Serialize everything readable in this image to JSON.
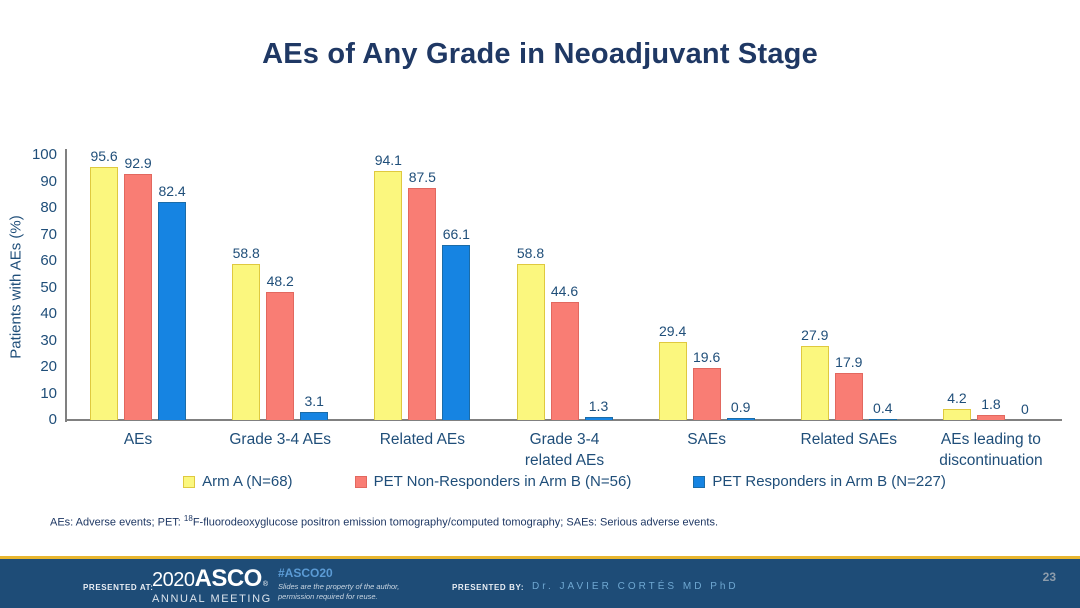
{
  "chart_data": {
    "type": "bar",
    "title": "AEs of Any Grade in Neoadjuvant Stage",
    "ylabel": "Patients with AEs (%)",
    "ylim": [
      0,
      100
    ],
    "ytick_step": 10,
    "grid": false,
    "legend_position": "bottom",
    "categories": [
      "AEs",
      "Grade 3-4 AEs",
      "Related AEs",
      "Grade 3-4\nrelated AEs",
      "SAEs",
      "Related SAEs",
      "AEs leading to\ndiscontinuation"
    ],
    "series": [
      {
        "name": "Arm A (N=68)",
        "color": "#FBF77E",
        "border_color": "#DFC93F",
        "values": [
          95.6,
          58.8,
          94.1,
          58.8,
          29.4,
          27.9,
          4.2
        ]
      },
      {
        "name": "PET Non-Responders in Arm B (N=56)",
        "color": "#F97D74",
        "border_color": "#E2685F",
        "values": [
          92.9,
          48.2,
          87.5,
          44.6,
          19.6,
          17.9,
          1.8
        ]
      },
      {
        "name": "PET Responders in Arm B  (N=227)",
        "color": "#1684E2",
        "border_color": "#1B6CA8",
        "values": [
          82.4,
          3.1,
          66.1,
          1.3,
          0.9,
          0.4,
          0
        ]
      }
    ]
  },
  "footnote": {
    "part1": "AEs: Adverse events; PET: ",
    "superscript": "18",
    "part2": "F-fluorodeoxyglucose positron emission tomography/computed tomography; SAEs: Serious adverse events."
  },
  "footer": {
    "presented_at_label": "PRESENTED AT:",
    "logo_year": "2020",
    "logo_org": "ASCO",
    "logo_reg": "®",
    "logo_sub": "ANNUAL MEETING",
    "hashtag": "#ASCO20",
    "tagline_line1": "Slides are the property of the author,",
    "tagline_line2": "permission required for reuse.",
    "presented_by_label": "PRESENTED BY:",
    "presenter": "Dr. JAVIER CORTÉS MD PhD",
    "page_number": "23"
  },
  "colors": {
    "title_text": "#1F3864",
    "axis_text": "#1F4E79",
    "axis_line": "#808080",
    "footer_bg": "#1E4C77",
    "gold_line": "#E8B62F"
  }
}
